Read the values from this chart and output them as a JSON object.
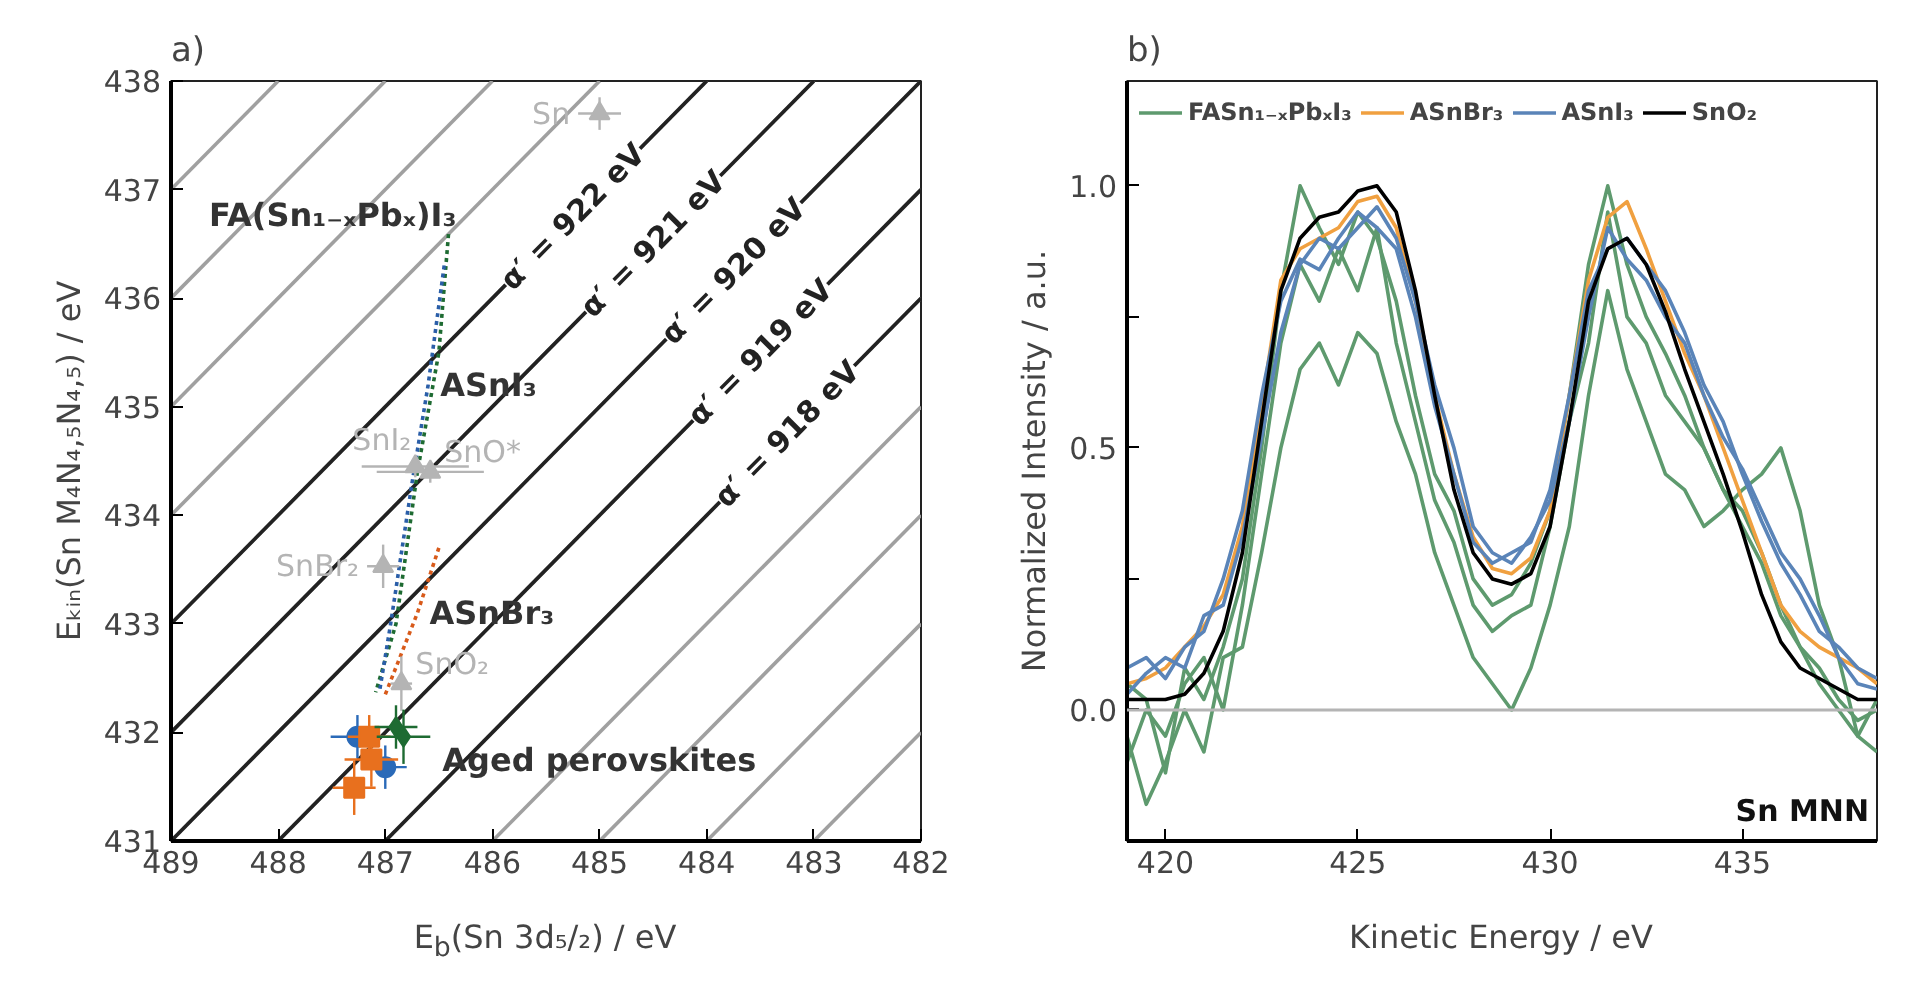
{
  "chart_data": [
    {
      "type": "scatter",
      "title": "a)",
      "xlabel": "E$_{b}$(Sn 3d₅/₂) / eV",
      "ylabel": "Eₖᵢₙ(Sn M₄N₄,₅N₄,₅) / eV",
      "xlim": [
        489,
        482
      ],
      "ylim": [
        431,
        438
      ],
      "xticks": [
        489,
        488,
        487,
        486,
        485,
        484,
        483,
        482
      ],
      "yticks": [
        431,
        432,
        433,
        434,
        435,
        436,
        437,
        438
      ],
      "grid": false,
      "legend": false,
      "series": [
        {
          "type": "line",
          "color": "#a0a0a0",
          "x": [
            486,
            482
          ],
          "values": [
            431,
            435
          ]
        },
        {
          "type": "line",
          "color": "#a0a0a0",
          "x": [
            487,
            482
          ],
          "values": [
            431,
            436
          ]
        },
        {
          "type": "line",
          "color": "#a0a0a0",
          "x": [
            488,
            482
          ],
          "values": [
            431,
            437
          ]
        },
        {
          "type": "line",
          "color": "#a0a0a0",
          "x": [
            489,
            482
          ],
          "values": [
            431,
            438
          ]
        },
        {
          "type": "line",
          "color": "#a0a0a0",
          "x": [
            489,
            483
          ],
          "values": [
            432,
            438
          ]
        },
        {
          "type": "line",
          "color": "#a0a0a0",
          "x": [
            489,
            484
          ],
          "values": [
            433,
            438
          ]
        },
        {
          "type": "line",
          "color": "#a0a0a0",
          "x": [
            489,
            485
          ],
          "values": [
            434,
            438
          ]
        },
        {
          "type": "line",
          "color": "#a0a0a0",
          "x": [
            489,
            486
          ],
          "values": [
            435,
            438
          ]
        },
        {
          "type": "line",
          "color": "#a0a0a0",
          "x": [
            489,
            487
          ],
          "values": [
            436,
            438
          ]
        },
        {
          "type": "line",
          "color": "#a0a0a0",
          "x": [
            489,
            488
          ],
          "values": [
            437,
            438
          ]
        },
        {
          "type": "line",
          "color": "#a0a0a0",
          "x": [
            485,
            482
          ],
          "values": [
            431,
            434
          ]
        },
        {
          "type": "line",
          "color": "#a0a0a0",
          "x": [
            484,
            482
          ],
          "values": [
            431,
            433
          ]
        },
        {
          "type": "line",
          "color": "#a0a0a0",
          "x": [
            483,
            482
          ],
          "values": [
            431,
            432
          ]
        },
        {
          "type": "line",
          "name": "α′ = 922 eV",
          "color": "#222222",
          "x": [
            489,
            484
          ],
          "values": [
            433,
            438
          ]
        },
        {
          "type": "line",
          "name": "α′ = 921 eV",
          "color": "#222222",
          "x": [
            489,
            483
          ],
          "values": [
            432,
            438
          ]
        },
        {
          "type": "line",
          "name": "α′ = 920 eV",
          "color": "#222222",
          "x": [
            489,
            482
          ],
          "values": [
            431,
            438
          ]
        },
        {
          "type": "line",
          "name": "α′ = 919 eV",
          "color": "#222222",
          "x": [
            488,
            482
          ],
          "values": [
            431,
            437
          ]
        },
        {
          "type": "line",
          "name": "α′ = 918 eV",
          "color": "#222222",
          "x": [
            487,
            482
          ],
          "values": [
            431,
            436
          ]
        },
        {
          "type": "line",
          "color": "#1e6b32",
          "line_style": "dotted",
          "x": [
            486.41,
            486.5,
            486.7,
            486.9,
            487.09
          ],
          "values": [
            436.59,
            435.5,
            434.4,
            433.0,
            432.37
          ]
        },
        {
          "type": "line",
          "color": "#2a5ea8",
          "line_style": "dotted",
          "x": [
            486.45,
            486.6,
            486.75,
            486.95,
            487.05
          ],
          "values": [
            436.3,
            435.2,
            434.3,
            433.0,
            432.4
          ]
        },
        {
          "type": "line",
          "color": "#d85a1a",
          "line_style": "dotted",
          "x": [
            486.5,
            486.7,
            486.9,
            487.0
          ],
          "values": [
            433.7,
            433.1,
            432.6,
            432.35
          ]
        },
        {
          "name": "Sn",
          "color": "#b4b4b4",
          "marker": "triangle",
          "x": [
            485.0
          ],
          "values": [
            437.7
          ],
          "errors": [
            0.15
          ],
          "xerrors": [
            0.2
          ]
        },
        {
          "name": "SnO*",
          "color": "#b4b4b4",
          "marker": "triangle",
          "x": [
            486.58
          ],
          "values": [
            434.4
          ],
          "errors": [
            0.1
          ],
          "xerrors": [
            0.5
          ]
        },
        {
          "name": "SnI₂",
          "color": "#b4b4b4",
          "marker": "triangle",
          "x": [
            486.72
          ],
          "values": [
            434.45
          ],
          "errors": [
            0.1
          ],
          "xerrors": [
            0.5
          ]
        },
        {
          "name": "SnO₂",
          "color": "#b4b4b4",
          "marker": "triangle",
          "x": [
            486.85
          ],
          "values": [
            432.45
          ],
          "errors": [
            0.25
          ],
          "xerrors": [
            0.1
          ]
        },
        {
          "name": "SnBr₂",
          "color": "#b4b4b4",
          "marker": "triangle",
          "x": [
            487.02
          ],
          "values": [
            433.53
          ],
          "errors": [
            0.2
          ],
          "xerrors": [
            0.15
          ]
        },
        {
          "color": "#2a6ab8",
          "marker": "circle",
          "x": [
            487.26,
            487.0
          ],
          "values": [
            431.96,
            431.68
          ],
          "errors": [
            0.2,
            0.2
          ],
          "xerrors": [
            0.25,
            0.2
          ]
        },
        {
          "color": "#e8701e",
          "marker": "square",
          "x": [
            487.15,
            487.13,
            487.29
          ],
          "values": [
            431.96,
            431.75,
            431.49
          ],
          "errors": [
            0.2,
            0.25,
            0.25
          ],
          "xerrors": [
            0.2,
            0.25,
            0.2
          ]
        },
        {
          "color": "#1e6b32",
          "marker": "diamond",
          "x": [
            486.9,
            486.83
          ],
          "values": [
            432.05,
            431.96
          ],
          "errors": [
            0.2,
            0.25
          ],
          "xerrors": [
            0.2,
            0.25
          ]
        }
      ],
      "annotations": [
        {
          "text": "FA(Sn₁₋ₓPbₓ)I₃",
          "x": 486.41,
          "y": 436.59
        },
        {
          "text": "ASnI₃",
          "x": 486.6,
          "y": 435.2
        },
        {
          "text": "ASnBr₃",
          "x": 486.7,
          "y": 433.1
        },
        {
          "text": "Aged perovskites",
          "x": 486.83,
          "y": 431.96
        }
      ]
    },
    {
      "type": "line",
      "title": "b)",
      "xlabel": "Kinetic Energy / eV",
      "ylabel": "Normalized Intensity / a.u.",
      "xlim": [
        419,
        438.5
      ],
      "ylim": [
        -0.25,
        1.2
      ],
      "xticks": [
        420,
        425,
        430,
        435
      ],
      "yticks": [
        {
          "value": 0,
          "label": "0.0"
        },
        {
          "value": 0.25,
          "label": null
        },
        {
          "value": 0.5,
          "label": "0.5"
        },
        {
          "value": 0.75,
          "label": null
        },
        {
          "value": 1,
          "label": "1.0"
        }
      ],
      "grid": false,
      "legend": "top left",
      "x": [
        419,
        419.5,
        420,
        420.5,
        421,
        421.5,
        422,
        422.5,
        423,
        423.5,
        424,
        424.5,
        425,
        425.5,
        426,
        426.5,
        427,
        427.5,
        428,
        428.5,
        429,
        429.5,
        430,
        430.5,
        431,
        431.5,
        432,
        432.5,
        433,
        433.5,
        434,
        434.5,
        435,
        435.5,
        436,
        436.5,
        437,
        437.5,
        438,
        438.5
      ],
      "ref_lines": [
        {
          "axis": "y",
          "value": 0,
          "color": "#b4b4b4"
        }
      ],
      "series": [
        {
          "name": "FASn₁₋ₓPbₓI₃",
          "color": "#5e9a6e",
          "values": [
            -0.1,
            0.0,
            -0.05,
            0.05,
            0.1,
            0.0,
            0.2,
            0.45,
            0.7,
            0.85,
            0.78,
            0.88,
            0.8,
            0.92,
            0.7,
            0.55,
            0.4,
            0.32,
            0.2,
            0.15,
            0.18,
            0.2,
            0.35,
            0.55,
            0.7,
            0.95,
            0.75,
            0.7,
            0.6,
            0.55,
            0.5,
            0.42,
            0.38,
            0.3,
            0.2,
            0.12,
            0.05,
            0.0,
            -0.05,
            0.02
          ]
        },
        {
          "color": "#5e9a6e",
          "values": [
            -0.05,
            -0.18,
            -0.1,
            0.0,
            -0.08,
            0.1,
            0.12,
            0.3,
            0.5,
            0.65,
            0.7,
            0.62,
            0.72,
            0.68,
            0.55,
            0.45,
            0.3,
            0.2,
            0.1,
            0.05,
            0.0,
            0.08,
            0.2,
            0.35,
            0.6,
            0.8,
            0.65,
            0.55,
            0.45,
            0.42,
            0.35,
            0.38,
            0.42,
            0.45,
            0.5,
            0.38,
            0.2,
            0.1,
            -0.05,
            -0.08
          ]
        },
        {
          "color": "#5e9a6e",
          "values": [
            0.05,
            0.02,
            -0.12,
            0.08,
            0.02,
            0.12,
            0.25,
            0.5,
            0.8,
            1.0,
            0.92,
            0.85,
            0.95,
            0.9,
            0.78,
            0.6,
            0.45,
            0.38,
            0.25,
            0.2,
            0.22,
            0.28,
            0.38,
            0.6,
            0.85,
            1.0,
            0.85,
            0.75,
            0.68,
            0.6,
            0.5,
            0.42,
            0.35,
            0.28,
            0.18,
            0.12,
            0.08,
            0.02,
            -0.02,
            0.0
          ]
        },
        {
          "name": "ASnBr₃",
          "color": "#f0a040",
          "values": [
            0.05,
            0.06,
            0.08,
            0.12,
            0.16,
            0.22,
            0.35,
            0.58,
            0.82,
            0.88,
            0.9,
            0.92,
            0.97,
            0.98,
            0.92,
            0.78,
            0.6,
            0.45,
            0.33,
            0.27,
            0.26,
            0.29,
            0.38,
            0.6,
            0.82,
            0.94,
            0.97,
            0.88,
            0.78,
            0.68,
            0.6,
            0.5,
            0.4,
            0.3,
            0.2,
            0.15,
            0.12,
            0.1,
            0.08,
            0.05
          ]
        },
        {
          "name": "ASnI₃",
          "color": "#5a84b8",
          "values": [
            0.08,
            0.1,
            0.06,
            0.12,
            0.15,
            0.25,
            0.38,
            0.6,
            0.78,
            0.86,
            0.84,
            0.9,
            0.95,
            0.92,
            0.88,
            0.75,
            0.58,
            0.45,
            0.32,
            0.28,
            0.3,
            0.32,
            0.42,
            0.6,
            0.8,
            0.88,
            0.9,
            0.85,
            0.8,
            0.72,
            0.62,
            0.55,
            0.45,
            0.36,
            0.28,
            0.22,
            0.15,
            0.12,
            0.08,
            0.06
          ]
        },
        {
          "color": "#5a84b8",
          "values": [
            0.03,
            0.07,
            0.1,
            0.08,
            0.18,
            0.2,
            0.33,
            0.52,
            0.72,
            0.85,
            0.9,
            0.88,
            0.92,
            0.96,
            0.9,
            0.78,
            0.62,
            0.5,
            0.35,
            0.3,
            0.28,
            0.33,
            0.4,
            0.55,
            0.75,
            0.92,
            0.86,
            0.82,
            0.75,
            0.7,
            0.6,
            0.52,
            0.46,
            0.38,
            0.3,
            0.25,
            0.18,
            0.1,
            0.05,
            0.04
          ]
        },
        {
          "name": "SnO₂",
          "color": "#000000",
          "values": [
            0.02,
            0.02,
            0.02,
            0.03,
            0.07,
            0.15,
            0.3,
            0.55,
            0.8,
            0.9,
            0.94,
            0.95,
            0.99,
            1.0,
            0.95,
            0.8,
            0.6,
            0.42,
            0.3,
            0.25,
            0.24,
            0.26,
            0.35,
            0.55,
            0.78,
            0.88,
            0.9,
            0.85,
            0.76,
            0.65,
            0.55,
            0.45,
            0.34,
            0.22,
            0.13,
            0.08,
            0.06,
            0.04,
            0.02,
            0.02
          ]
        }
      ],
      "annotations": [
        "Sn MNN"
      ]
    }
  ]
}
